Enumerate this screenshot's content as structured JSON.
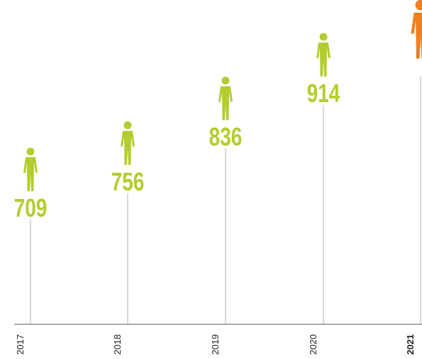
{
  "chart_data": {
    "type": "pictogram",
    "categories": [
      "2017",
      "2018",
      "2019",
      "2020",
      "2021"
    ],
    "values": [
      709,
      756,
      836,
      914,
      971
    ],
    "value_labels": [
      "709",
      "756",
      "836",
      "914",
      null
    ],
    "colors": [
      "#b5cc2e",
      "#b5cc2e",
      "#b5cc2e",
      "#b5cc2e",
      "#f07f1e"
    ],
    "bold_categories": [
      false,
      false,
      false,
      false,
      true
    ],
    "ylim": [
      400,
      980
    ]
  }
}
